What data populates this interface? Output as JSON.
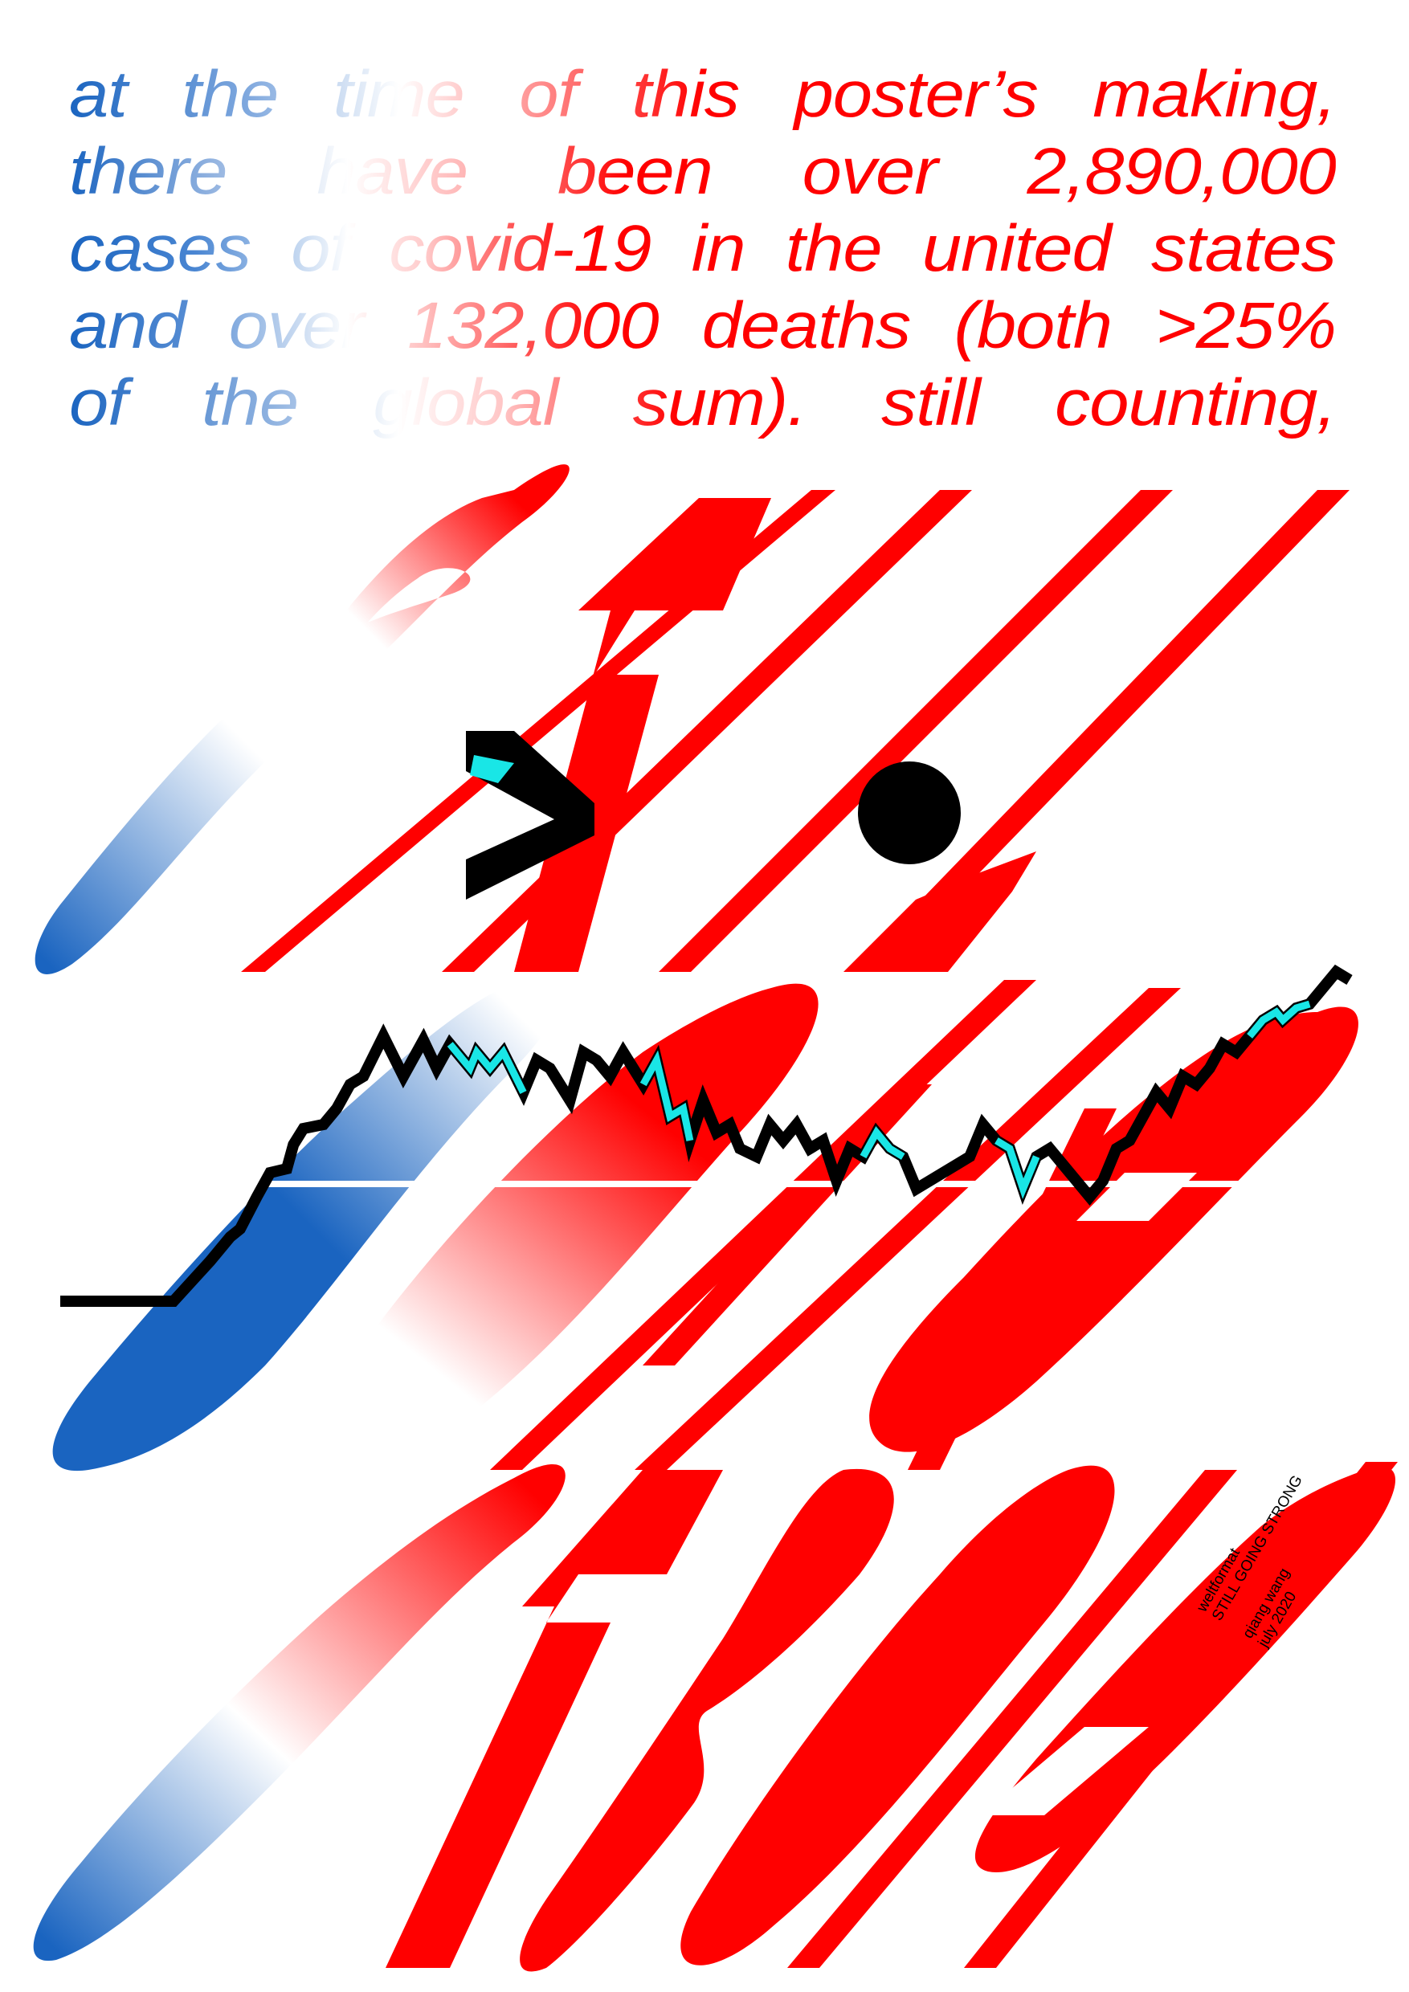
{
  "headline": {
    "lines": [
      "at the time of this poster’s making,",
      "there have been over 2,890,000",
      "cases of covid-19 in the united states",
      "and over 132,000 deaths (both >25%",
      "of the global sum). still counting,"
    ]
  },
  "credits": {
    "org": "weltformat",
    "title": "STILL GOING STRONG",
    "author": "qiang wang",
    "date": "july 2020"
  },
  "colors": {
    "red": "#ff0000",
    "blue": "#1a64c0",
    "black": "#000000",
    "cyan": "#19e6e6"
  },
  "icons": {
    "greater_than": "greater-than-glyph",
    "dot": "filled-circle"
  }
}
